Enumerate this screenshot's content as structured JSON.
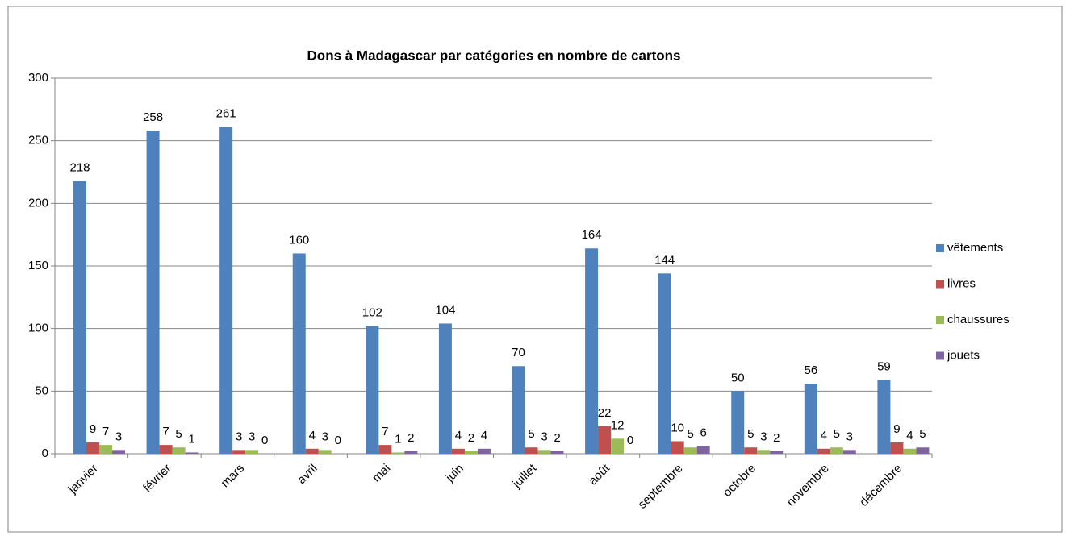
{
  "chart_data": {
    "type": "bar",
    "title": "Dons à Madagascar par catégories en nombre de cartons",
    "categories": [
      "janvier",
      "février",
      "mars",
      "avril",
      "mai",
      "juin",
      "juillet",
      "août",
      "septembre",
      "octobre",
      "novembre",
      "décembre"
    ],
    "series": [
      {
        "name": "vêtements",
        "color": "#4f81bd",
        "values": [
          218,
          258,
          261,
          160,
          102,
          104,
          70,
          164,
          144,
          50,
          56,
          59
        ]
      },
      {
        "name": "livres",
        "color": "#c0504d",
        "values": [
          9,
          7,
          3,
          4,
          7,
          4,
          5,
          22,
          10,
          5,
          4,
          9
        ]
      },
      {
        "name": "chaussures",
        "color": "#9bbb59",
        "values": [
          7,
          5,
          3,
          3,
          1,
          2,
          3,
          12,
          5,
          3,
          5,
          4
        ]
      },
      {
        "name": "jouets",
        "color": "#8064a2",
        "values": [
          3,
          1,
          0,
          0,
          2,
          4,
          2,
          0,
          6,
          2,
          3,
          5
        ]
      }
    ],
    "ylim": [
      0,
      300
    ],
    "yticks": [
      0,
      50,
      100,
      150,
      200,
      250,
      300
    ],
    "grid": true,
    "legend": "right",
    "data_labels": true
  }
}
